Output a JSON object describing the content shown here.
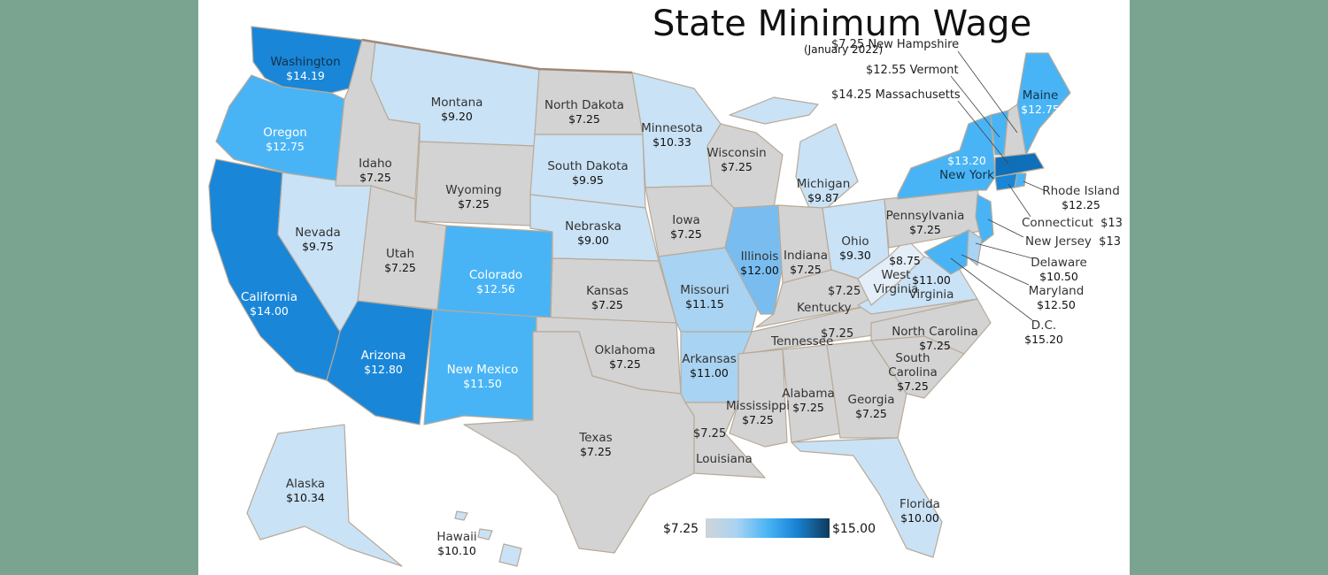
{
  "title": "State Minimum Wage",
  "subtitle": "(January 2022)",
  "legend": {
    "min_label": "$7.25",
    "max_label": "$15.00",
    "min_value": 7.25,
    "max_value": 15.0
  },
  "colors": {
    "background": "#7aa390",
    "federal": "#d3d3d3",
    "light": "#c9e2f6",
    "mid": "#a9d3f2",
    "bright": "#49b4f5",
    "deep": "#1a86d8",
    "darkest": "#0f6fb8"
  },
  "states": {
    "washington": {
      "name": "Washington",
      "wage": "$14.19"
    },
    "oregon": {
      "name": "Oregon",
      "wage": "$12.75"
    },
    "california": {
      "name": "California",
      "wage": "$14.00"
    },
    "nevada": {
      "name": "Nevada",
      "wage": "$9.75"
    },
    "idaho": {
      "name": "Idaho",
      "wage": "$7.25"
    },
    "montana": {
      "name": "Montana",
      "wage": "$9.20"
    },
    "wyoming": {
      "name": "Wyoming",
      "wage": "$7.25"
    },
    "utah": {
      "name": "Utah",
      "wage": "$7.25"
    },
    "arizona": {
      "name": "Arizona",
      "wage": "$12.80"
    },
    "colorado": {
      "name": "Colorado",
      "wage": "$12.56"
    },
    "new_mexico": {
      "name": "New Mexico",
      "wage": "$11.50"
    },
    "north_dakota": {
      "name": "North Dakota",
      "wage": "$7.25"
    },
    "south_dakota": {
      "name": "South Dakota",
      "wage": "$9.95"
    },
    "nebraska": {
      "name": "Nebraska",
      "wage": "$9.00"
    },
    "kansas": {
      "name": "Kansas",
      "wage": "$7.25"
    },
    "oklahoma": {
      "name": "Oklahoma",
      "wage": "$7.25"
    },
    "texas": {
      "name": "Texas",
      "wage": "$7.25"
    },
    "minnesota": {
      "name": "Minnesota",
      "wage": "$10.33"
    },
    "iowa": {
      "name": "Iowa",
      "wage": "$7.25"
    },
    "missouri": {
      "name": "Missouri",
      "wage": "$11.15"
    },
    "arkansas": {
      "name": "Arkansas",
      "wage": "$11.00"
    },
    "louisiana": {
      "name": "Louisiana",
      "wage": "$7.25"
    },
    "wisconsin": {
      "name": "Wisconsin",
      "wage": "$7.25"
    },
    "illinois": {
      "name": "Illinois",
      "wage": "$12.00"
    },
    "michigan": {
      "name": "Michigan",
      "wage": "$9.87"
    },
    "indiana": {
      "name": "Indiana",
      "wage": "$7.25"
    },
    "ohio": {
      "name": "Ohio",
      "wage": "$9.30"
    },
    "kentucky": {
      "name": "Kentucky",
      "wage": "$7.25"
    },
    "tennessee": {
      "name": "Tennessee",
      "wage": "$7.25"
    },
    "mississippi": {
      "name": "Mississippi",
      "wage": "$7.25"
    },
    "alabama": {
      "name": "Alabama",
      "wage": "$7.25"
    },
    "georgia": {
      "name": "Georgia",
      "wage": "$7.25"
    },
    "florida": {
      "name": "Florida",
      "wage": "$10.00"
    },
    "south_carolina": {
      "name": "South Carolina",
      "name_line1": "South",
      "name_line2": "Carolina",
      "wage": "$7.25"
    },
    "north_carolina": {
      "name": "North Carolina",
      "wage": "$7.25"
    },
    "virginia": {
      "name": "Virginia",
      "wage": "$11.00"
    },
    "west_virginia": {
      "name": "West Virginia",
      "name_line1": "West",
      "name_line2": "Virginia",
      "wage": "$8.75"
    },
    "pennsylvania": {
      "name": "Pennsylvania",
      "wage": "$7.25"
    },
    "new_york": {
      "name": "New York",
      "wage": "$13.20"
    },
    "maine": {
      "name": "Maine",
      "wage": "$12.75"
    },
    "new_hampshire": {
      "name": "New Hampshire",
      "wage": "$7.25"
    },
    "vermont": {
      "name": "Vermont",
      "wage": "$12.55"
    },
    "massachusetts": {
      "name": "Massachusetts",
      "wage": "$14.25"
    },
    "rhode_island": {
      "name": "Rhode Island",
      "wage": "$12.25"
    },
    "connecticut": {
      "name": "Connecticut",
      "wage": "$13"
    },
    "new_jersey": {
      "name": "New Jersey",
      "wage": "$13"
    },
    "delaware": {
      "name": "Delaware",
      "wage": "$10.50"
    },
    "maryland": {
      "name": "Maryland",
      "wage": "$12.50"
    },
    "dc": {
      "name": "D.C.",
      "wage": "$15.20"
    },
    "alaska": {
      "name": "Alaska",
      "wage": "$10.34"
    },
    "hawaii": {
      "name": "Hawaii",
      "wage": "$10.10"
    }
  }
}
